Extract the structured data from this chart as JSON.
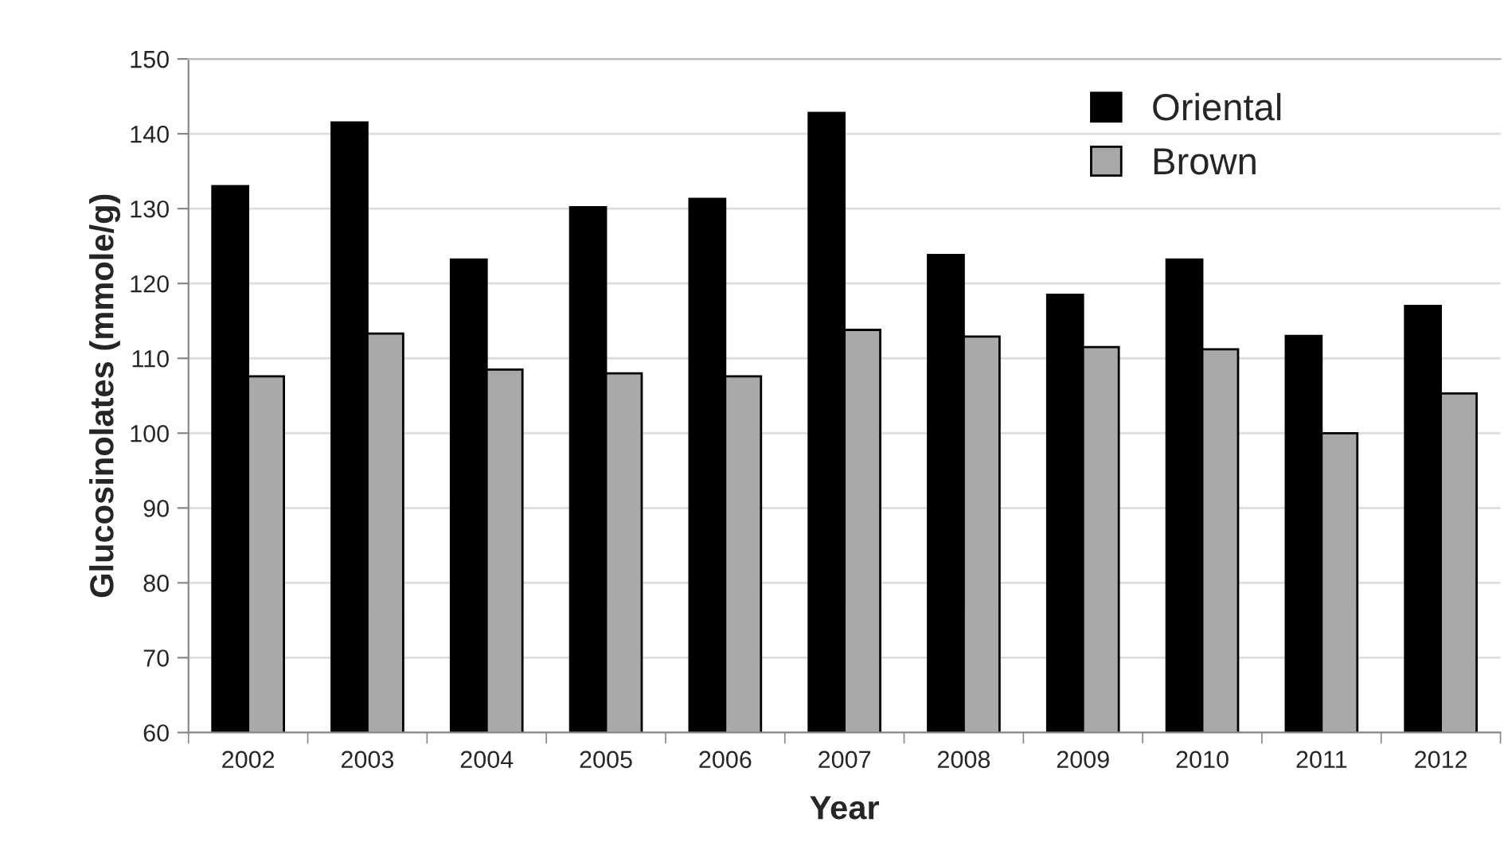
{
  "chart_data": {
    "type": "bar",
    "xlabel": "Year",
    "ylabel": "Glucosinolates (mmole/g)",
    "categories": [
      "2002",
      "2003",
      "2004",
      "2005",
      "2006",
      "2007",
      "2008",
      "2009",
      "2010",
      "2011",
      "2012"
    ],
    "series": [
      {
        "name": "Oriental",
        "color": "#000000",
        "values": [
          133,
          141.5,
          123.2,
          130.2,
          131.3,
          142.8,
          123.8,
          118.5,
          123.2,
          113,
          117
        ]
      },
      {
        "name": "Brown",
        "color": "#a9a9a9",
        "values": [
          107.6,
          113.3,
          108.5,
          108,
          107.6,
          113.8,
          112.9,
          111.5,
          111.2,
          100,
          105.3
        ]
      }
    ],
    "ylim": [
      60,
      150
    ],
    "yticks": [
      60,
      70,
      80,
      90,
      100,
      110,
      120,
      130,
      140,
      150
    ],
    "grid": "y",
    "legend": "top right"
  }
}
